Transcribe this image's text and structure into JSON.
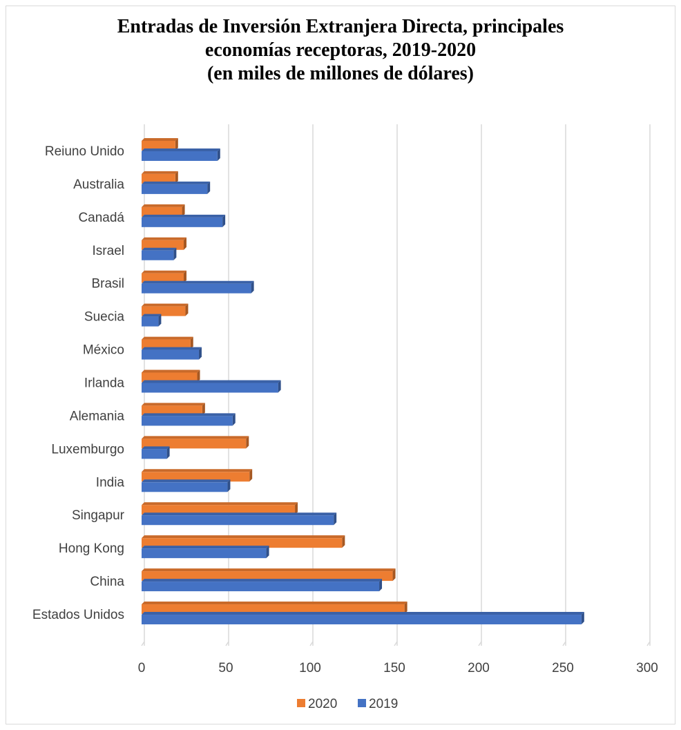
{
  "chart_data": {
    "type": "bar",
    "orientation": "horizontal",
    "title_lines": [
      "Entradas de Inversión Extranjera Directa,  principales",
      "economías receptoras, 2019-2020",
      "(en miles de millones de dólares)"
    ],
    "categories": [
      "Reiuno Unido",
      "Australia",
      "Canadá",
      "Israel",
      "Brasil",
      "Suecia",
      "México",
      "Irlanda",
      "Alemania",
      "Luxemburgo",
      "India",
      "Singapur",
      "Hong Kong",
      "China",
      "Estados Unidos"
    ],
    "series": [
      {
        "name": "2020",
        "color": "#ed7d31",
        "values": [
          20,
          20,
          24,
          25,
          25,
          26,
          29,
          33,
          36,
          62,
          64,
          91,
          119,
          149,
          156
        ]
      },
      {
        "name": "2019",
        "color": "#4472c4",
        "values": [
          45,
          39,
          48,
          19,
          65,
          10,
          34,
          81,
          54,
          15,
          51,
          114,
          74,
          141,
          261
        ]
      }
    ],
    "xlim": [
      0,
      300
    ],
    "xticks": [
      "0",
      "50",
      "100",
      "150",
      "200",
      "250",
      "300"
    ],
    "grid": true,
    "legend_position": "bottom",
    "legend": [
      "2020",
      "2019"
    ]
  }
}
